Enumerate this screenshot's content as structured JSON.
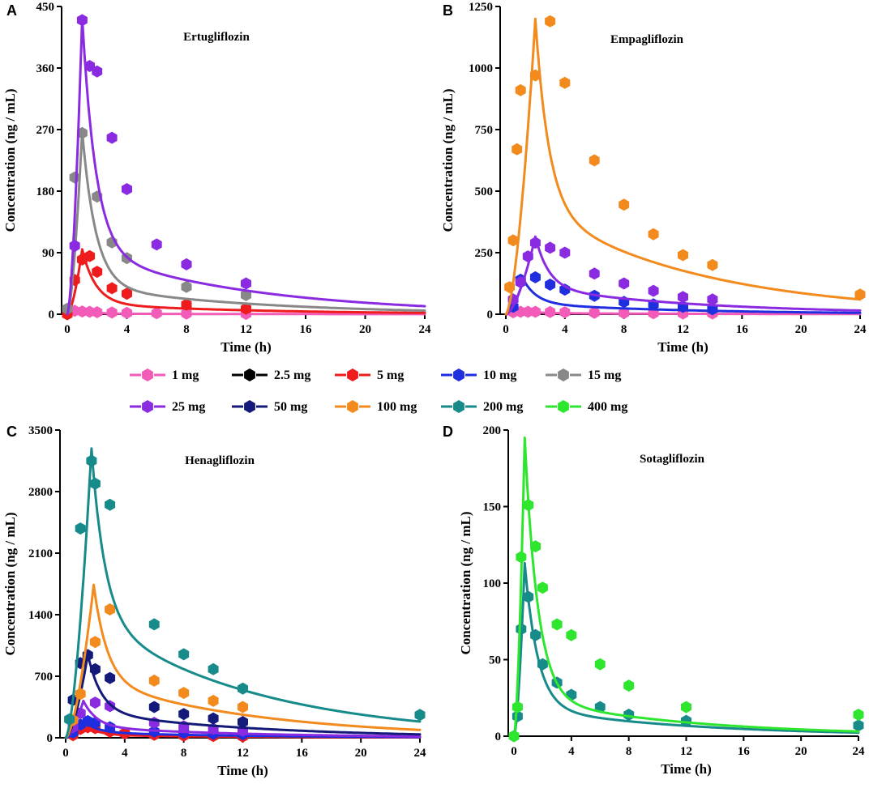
{
  "series_styles": [
    {
      "name": "1 mg",
      "color": "#f25bb8"
    },
    {
      "name": "2.5 mg",
      "color": "#000000"
    },
    {
      "name": "5 mg",
      "color": "#ee1c1c"
    },
    {
      "name": "10 mg",
      "color": "#1f2fe0"
    },
    {
      "name": "15 mg",
      "color": "#888888"
    },
    {
      "name": "25 mg",
      "color": "#8a2be2"
    },
    {
      "name": "50 mg",
      "color": "#141a7a"
    },
    {
      "name": "100 mg",
      "color": "#f28a1d"
    },
    {
      "name": "200 mg",
      "color": "#178a8a"
    },
    {
      "name": "400 mg",
      "color": "#2ee62e"
    }
  ],
  "legend": [
    "1 mg",
    "2.5 mg",
    "5 mg",
    "10 mg",
    "15 mg",
    "25 mg",
    "50 mg",
    "100 mg",
    "200 mg",
    "400 mg"
  ],
  "chart_data": [
    {
      "type": "line",
      "panel": "A",
      "title": "Ertugliflozin",
      "xlabel": "Time (h)",
      "ylabel": "Concentration (ng / mL)",
      "xlim": [
        0,
        24
      ],
      "ylim": [
        0,
        450
      ],
      "xticks": [
        0,
        4,
        8,
        12,
        16,
        20,
        24
      ],
      "yticks": [
        0,
        90,
        180,
        270,
        360,
        450
      ],
      "series": [
        {
          "name": "1 mg",
          "points": [
            [
              0,
              0
            ],
            [
              0.5,
              5
            ],
            [
              1,
              4
            ],
            [
              1.5,
              3.5
            ],
            [
              2,
              3
            ],
            [
              3,
              2.5
            ],
            [
              4,
              2
            ],
            [
              6,
              1.5
            ],
            [
              8,
              1
            ],
            [
              12,
              0.5
            ]
          ],
          "curve": {
            "peak": 4.5,
            "tmax": 1.0,
            "terminal": 0.5
          }
        },
        {
          "name": "5 mg",
          "points": [
            [
              0,
              0
            ],
            [
              0.5,
              50
            ],
            [
              1,
              80
            ],
            [
              1.5,
              85
            ],
            [
              2,
              62
            ],
            [
              3,
              38
            ],
            [
              4,
              30
            ],
            [
              8,
              14
            ],
            [
              12,
              8
            ]
          ],
          "curve": {
            "peak": 95,
            "tmax": 1.0,
            "terminal": 10
          }
        },
        {
          "name": "15 mg",
          "points": [
            [
              0,
              8
            ],
            [
              0.5,
              200
            ],
            [
              1,
              265
            ],
            [
              2,
              172
            ],
            [
              3,
              105
            ],
            [
              4,
              82
            ],
            [
              8,
              40
            ],
            [
              12,
              28
            ]
          ],
          "curve": {
            "peak": 268,
            "tmax": 1.0,
            "terminal": 27
          }
        },
        {
          "name": "25 mg",
          "points": [
            [
              0.5,
              100
            ],
            [
              1,
              430
            ],
            [
              1.5,
              363
            ],
            [
              2,
              355
            ],
            [
              3,
              258
            ],
            [
              4,
              183
            ],
            [
              6,
              102
            ],
            [
              8,
              73
            ],
            [
              12,
              45
            ]
          ],
          "curve": {
            "peak": 435,
            "tmax": 1.0,
            "terminal": 60
          }
        }
      ]
    },
    {
      "type": "line",
      "panel": "B",
      "title": "Empagliflozin",
      "xlabel": "Time (h)",
      "ylabel": "Concentration (ng / mL)",
      "xlim": [
        0,
        24
      ],
      "ylim": [
        0,
        1250
      ],
      "xticks": [
        0,
        4,
        8,
        12,
        16,
        20,
        24
      ],
      "yticks": [
        0,
        250,
        500,
        750,
        1000,
        1250
      ],
      "series": [
        {
          "name": "1 mg",
          "points": [
            [
              0.5,
              8
            ],
            [
              1,
              10
            ],
            [
              1.5,
              10
            ],
            [
              2,
              10
            ],
            [
              3,
              9
            ],
            [
              4,
              8
            ],
            [
              6,
              6
            ],
            [
              8,
              5
            ],
            [
              10,
              4
            ],
            [
              12,
              3
            ],
            [
              14,
              3
            ]
          ],
          "curve": {
            "peak": 11,
            "tmax": 1.5,
            "terminal": 3
          }
        },
        {
          "name": "10 mg",
          "points": [
            [
              0.5,
              30
            ],
            [
              1,
              140
            ],
            [
              2,
              150
            ],
            [
              3,
              120
            ],
            [
              4,
              100
            ],
            [
              6,
              75
            ],
            [
              8,
              50
            ],
            [
              10,
              40
            ],
            [
              12,
              30
            ],
            [
              14,
              20
            ]
          ],
          "curve": {
            "peak": 140,
            "tmax": 1.2,
            "terminal": 28
          }
        },
        {
          "name": "25 mg",
          "points": [
            [
              0.5,
              60
            ],
            [
              1,
              130
            ],
            [
              1.5,
              235
            ],
            [
              2,
              290
            ],
            [
              3,
              270
            ],
            [
              4,
              250
            ],
            [
              6,
              165
            ],
            [
              8,
              125
            ],
            [
              10,
              95
            ],
            [
              12,
              70
            ],
            [
              14,
              60
            ]
          ],
          "curve": {
            "peak": 315,
            "tmax": 2.0,
            "terminal": 70
          }
        },
        {
          "name": "100 mg",
          "points": [
            [
              0.25,
              110
            ],
            [
              0.5,
              300
            ],
            [
              0.75,
              670
            ],
            [
              1,
              910
            ],
            [
              2,
              970
            ],
            [
              3,
              1190
            ],
            [
              4,
              940
            ],
            [
              6,
              625
            ],
            [
              8,
              445
            ],
            [
              10,
              325
            ],
            [
              12,
              240
            ],
            [
              14,
              200
            ],
            [
              24,
              80
            ]
          ],
          "curve": {
            "peak": 1200,
            "tmax": 2.0,
            "terminal": 280
          }
        }
      ]
    },
    {
      "type": "line",
      "panel": "C",
      "title": "Henagliflozin",
      "xlabel": "Time (h)",
      "ylabel": "Concentration (ng / mL)",
      "xlim": [
        0,
        24
      ],
      "ylim": [
        0,
        3500
      ],
      "xticks": [
        0,
        4,
        8,
        12,
        16,
        20,
        24
      ],
      "yticks": [
        0,
        700,
        1400,
        2100,
        2800,
        3500
      ],
      "series": [
        {
          "name": "5 mg",
          "points": [
            [
              0.5,
              30
            ],
            [
              1,
              100
            ],
            [
              1.5,
              120
            ],
            [
              2,
              110
            ],
            [
              3,
              70
            ],
            [
              4,
              50
            ],
            [
              6,
              35
            ],
            [
              8,
              25
            ],
            [
              10,
              20
            ],
            [
              12,
              15
            ]
          ],
          "curve": {
            "peak": 120,
            "tmax": 1.5,
            "terminal": 20
          }
        },
        {
          "name": "10 mg",
          "points": [
            [
              0.5,
              60
            ],
            [
              1,
              150
            ],
            [
              1.5,
              190
            ],
            [
              2,
              170
            ],
            [
              3,
              120
            ],
            [
              6,
              70
            ],
            [
              8,
              55
            ],
            [
              10,
              45
            ],
            [
              12,
              40
            ]
          ],
          "curve": {
            "peak": 190,
            "tmax": 1.2,
            "terminal": 40
          }
        },
        {
          "name": "25 mg",
          "points": [
            [
              0.5,
              120
            ],
            [
              1,
              280
            ],
            [
              2,
              400
            ],
            [
              3,
              360
            ],
            [
              6,
              170
            ],
            [
              8,
              130
            ],
            [
              10,
              100
            ],
            [
              12,
              80
            ]
          ],
          "curve": {
            "peak": 420,
            "tmax": 1.2,
            "terminal": 80
          }
        },
        {
          "name": "50 mg",
          "points": [
            [
              0.5,
              430
            ],
            [
              1,
              850
            ],
            [
              1.5,
              940
            ],
            [
              2,
              780
            ],
            [
              3,
              680
            ],
            [
              6,
              350
            ],
            [
              8,
              270
            ],
            [
              10,
              220
            ],
            [
              12,
              180
            ]
          ],
          "curve": {
            "peak": 950,
            "tmax": 1.5,
            "terminal": 190
          }
        },
        {
          "name": "100 mg",
          "points": [
            [
              0.5,
              200
            ],
            [
              1,
              500
            ],
            [
              2,
              1090
            ],
            [
              3,
              1460
            ],
            [
              6,
              650
            ],
            [
              8,
              510
            ],
            [
              10,
              420
            ],
            [
              12,
              350
            ]
          ],
          "curve": {
            "peak": 1740,
            "tmax": 1.9,
            "terminal": 420
          }
        },
        {
          "name": "200 mg",
          "points": [
            [
              0.25,
              210
            ],
            [
              1,
              2380
            ],
            [
              1.75,
              3150
            ],
            [
              2,
              2890
            ],
            [
              3,
              2650
            ],
            [
              6,
              1290
            ],
            [
              8,
              950
            ],
            [
              10,
              780
            ],
            [
              12,
              560
            ],
            [
              24,
              260
            ]
          ],
          "curve": {
            "peak": 3290,
            "tmax": 1.75,
            "terminal": 880
          }
        }
      ]
    },
    {
      "type": "line",
      "panel": "D",
      "title": "Sotagliflozin",
      "xlabel": "Time (h)",
      "ylabel": "Concentration (ng / mL)",
      "xlim": [
        0,
        24
      ],
      "ylim": [
        0,
        200
      ],
      "xticks": [
        0,
        4,
        8,
        12,
        16,
        20,
        24
      ],
      "yticks": [
        0,
        50,
        100,
        150,
        200
      ],
      "series": [
        {
          "name": "200 mg",
          "points": [
            [
              0,
              0
            ],
            [
              0.25,
              13
            ],
            [
              0.5,
              70
            ],
            [
              1,
              91
            ],
            [
              1.5,
              66
            ],
            [
              2,
              47
            ],
            [
              3,
              35
            ],
            [
              4,
              27
            ],
            [
              6,
              19
            ],
            [
              8,
              14
            ],
            [
              12,
              10
            ],
            [
              24,
              7
            ]
          ],
          "curve": {
            "peak": 113,
            "tmax": 0.75,
            "terminal": 12
          }
        },
        {
          "name": "400 mg",
          "points": [
            [
              0,
              0
            ],
            [
              0.25,
              19
            ],
            [
              0.5,
              117
            ],
            [
              1,
              151
            ],
            [
              1.5,
              124
            ],
            [
              2,
              97
            ],
            [
              3,
              73
            ],
            [
              4,
              66
            ],
            [
              6,
              47
            ],
            [
              8,
              33
            ],
            [
              12,
              19
            ],
            [
              24,
              14
            ]
          ],
          "curve": {
            "peak": 195,
            "tmax": 0.75,
            "terminal": 16
          }
        }
      ]
    }
  ]
}
